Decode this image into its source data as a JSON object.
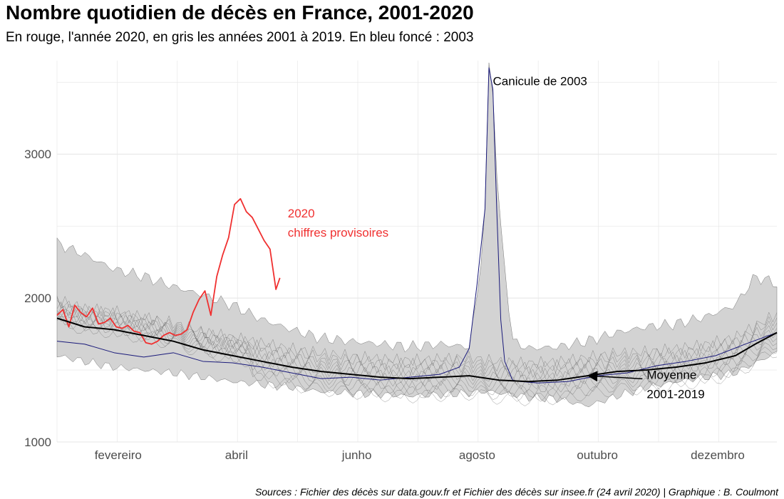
{
  "chart_data": {
    "type": "line",
    "title": "Nombre quotidien de décès en France, 2001-2020",
    "subtitle": "En rouge, l'année 2020, en gris les années 2001 à 2019. En bleu foncé : 2003",
    "caption": "Sources : Fichier des décès sur data.gouv.fr et Fichier des décès sur insee.fr (24 avril 2020) | Graphique : B. Coulmont",
    "xlabel": "",
    "ylabel": "",
    "x_unit": "day of year",
    "xlim": [
      1,
      366
    ],
    "ylim": [
      1000,
      3650
    ],
    "y_ticks": [
      1000,
      2000,
      3000
    ],
    "x_ticks": [
      {
        "label": "fevereiro",
        "day": 32
      },
      {
        "label": "abril",
        "day": 92
      },
      {
        "label": "junho",
        "day": 153
      },
      {
        "label": "agosto",
        "day": 214
      },
      {
        "label": "outubro",
        "day": 275
      },
      {
        "label": "dezembro",
        "day": 336
      }
    ],
    "grid": true,
    "legend": "none",
    "colors": {
      "year_2020": "#f03030",
      "year_2003": "#1a1a7a",
      "mean": "#000000",
      "other_years": "#555555",
      "range_fill": "#d3d3d3"
    },
    "series": [
      {
        "name": "2020",
        "color": "#f03030",
        "x": [
          1,
          4,
          7,
          10,
          13,
          16,
          19,
          22,
          25,
          28,
          31,
          34,
          37,
          40,
          43,
          46,
          49,
          52,
          55,
          58,
          61,
          64,
          67,
          70,
          73,
          76,
          79,
          82,
          85,
          88,
          91,
          94,
          97,
          100,
          103,
          106,
          109,
          112,
          114
        ],
        "values": [
          1880,
          1920,
          1800,
          1950,
          1900,
          1870,
          1930,
          1820,
          1830,
          1860,
          1800,
          1790,
          1810,
          1770,
          1760,
          1690,
          1680,
          1700,
          1740,
          1760,
          1740,
          1750,
          1780,
          1900,
          1990,
          2050,
          1880,
          2150,
          2300,
          2420,
          2650,
          2690,
          2600,
          2560,
          2480,
          2400,
          2340,
          2060,
          2140
        ]
      },
      {
        "name": "2003",
        "color": "#1a1a7a",
        "x": [
          1,
          15,
          30,
          45,
          60,
          75,
          90,
          105,
          120,
          135,
          150,
          165,
          180,
          195,
          205,
          210,
          214,
          218,
          220,
          222,
          224,
          226,
          228,
          232,
          236,
          245,
          260,
          275,
          290,
          305,
          320,
          335,
          350,
          366
        ],
        "values": [
          1700,
          1680,
          1620,
          1590,
          1620,
          1560,
          1550,
          1520,
          1480,
          1440,
          1450,
          1430,
          1450,
          1470,
          1520,
          1650,
          2100,
          2620,
          3600,
          3450,
          2600,
          1850,
          1560,
          1430,
          1420,
          1410,
          1420,
          1460,
          1480,
          1530,
          1560,
          1600,
          1680,
          1760
        ]
      },
      {
        "name": "Moyenne 2001-2019",
        "color": "#000000",
        "x": [
          1,
          15,
          30,
          45,
          60,
          75,
          90,
          105,
          120,
          135,
          150,
          165,
          180,
          195,
          210,
          225,
          240,
          255,
          270,
          285,
          300,
          315,
          330,
          345,
          355,
          366
        ],
        "values": [
          1860,
          1800,
          1780,
          1740,
          1700,
          1640,
          1600,
          1560,
          1520,
          1490,
          1470,
          1450,
          1440,
          1450,
          1460,
          1430,
          1420,
          1430,
          1460,
          1490,
          1500,
          1520,
          1550,
          1600,
          1680,
          1760
        ]
      }
    ],
    "range_band": {
      "name": "2001-2019",
      "x": [
        1,
        15,
        30,
        45,
        60,
        75,
        90,
        105,
        120,
        135,
        150,
        165,
        180,
        195,
        210,
        215,
        218,
        220,
        222,
        225,
        232,
        240,
        255,
        270,
        285,
        300,
        315,
        330,
        345,
        355,
        366
      ],
      "min": [
        1600,
        1560,
        1520,
        1500,
        1480,
        1450,
        1420,
        1400,
        1380,
        1350,
        1340,
        1330,
        1320,
        1330,
        1340,
        1350,
        1350,
        1350,
        1350,
        1340,
        1330,
        1310,
        1300,
        1250,
        1320,
        1380,
        1420,
        1450,
        1480,
        1550,
        1620
      ],
      "max": [
        2380,
        2300,
        2200,
        2150,
        2080,
        2020,
        1950,
        1850,
        1780,
        1720,
        1700,
        1680,
        1660,
        1680,
        1660,
        2100,
        2620,
        3600,
        3450,
        2600,
        1700,
        1650,
        1660,
        1700,
        1760,
        1800,
        1820,
        1870,
        1950,
        2150,
        2100
      ]
    },
    "annotations": [
      {
        "text": "Canicule de 2003",
        "x": 222,
        "y": 3480
      },
      {
        "lines": [
          "2020",
          "chiffres provisoires"
        ],
        "color": "#f03030",
        "x": 118,
        "y": 2560
      },
      {
        "lines": [
          "Moyenne",
          "2001-2019"
        ],
        "x": 300,
        "y": 1300,
        "arrow_to": {
          "x": 270,
          "y": 1490
        }
      }
    ]
  }
}
